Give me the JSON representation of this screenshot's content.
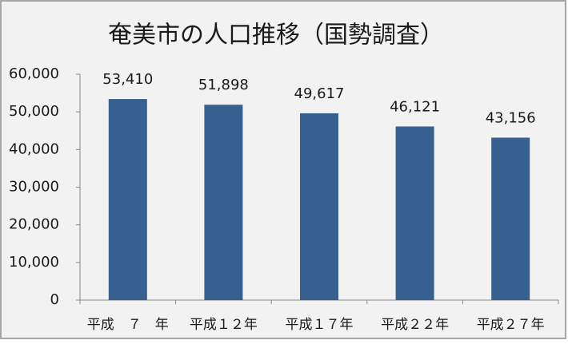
{
  "chart_data": {
    "type": "bar",
    "title": "奄美市の人口推移（国勢調査）",
    "categories": [
      "平成　７　年",
      "平成１２年",
      "平成１７年",
      "平成２２年",
      "平成２７年"
    ],
    "values": [
      53410,
      51898,
      49617,
      46121,
      43156
    ],
    "value_labels": [
      "53,410",
      "51,898",
      "49,617",
      "46,121",
      "43,156"
    ],
    "color": "#35608f",
    "ylim": [
      0,
      60000
    ],
    "yticks": [
      0,
      {
        "value": 10000,
        "label": "10,000"
      },
      {
        "value": 20000,
        "label": "20,000"
      },
      {
        "value": 30000,
        "label": "30,000"
      },
      {
        "value": 40000,
        "label": "40,000"
      },
      {
        "value": 50000,
        "label": "50,000"
      },
      {
        "value": 60000,
        "label": "60,000"
      }
    ],
    "grid": false
  }
}
